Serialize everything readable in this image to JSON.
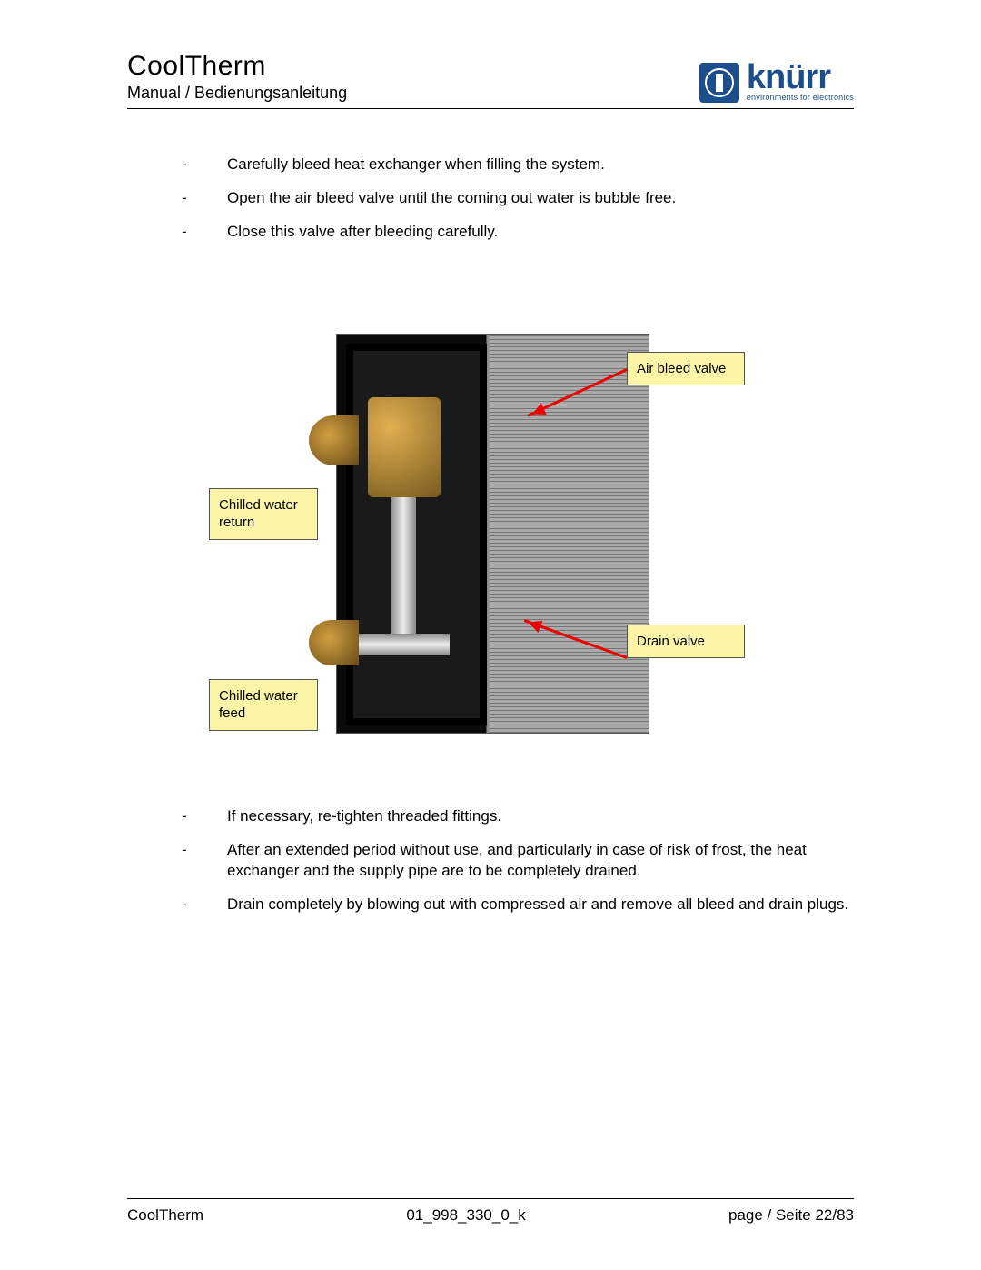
{
  "header": {
    "title": "CoolTherm",
    "subtitle": "Manual / Bedienungsanleitung"
  },
  "brand": {
    "name": "knürr",
    "tagline": "environments for electronics",
    "brand_color": "#1b4e8a"
  },
  "bullets_top": [
    "Carefully bleed heat exchanger when filling the system.",
    "Open the air bleed valve until the coming out water is bubble free.",
    "Close this valve after bleeding carefully."
  ],
  "callouts": {
    "air_bleed": "Air bleed valve",
    "drain": "Drain valve",
    "return": "Chilled water return",
    "feed": "Chilled water feed",
    "callout_bg": "#fcf5a8",
    "arrow_color": "#e00000"
  },
  "bullets_bottom": [
    "If necessary, re-tighten threaded fittings.",
    "After an extended period without use, and particularly in case of risk of frost, the heat exchanger and the supply pipe are to be completely drained.",
    "Drain completely by blowing out with compressed air and remove all bleed and drain plugs."
  ],
  "footer": {
    "left": "CoolTherm",
    "center": "01_998_330_0_k",
    "right": "page / Seite 22/83"
  }
}
